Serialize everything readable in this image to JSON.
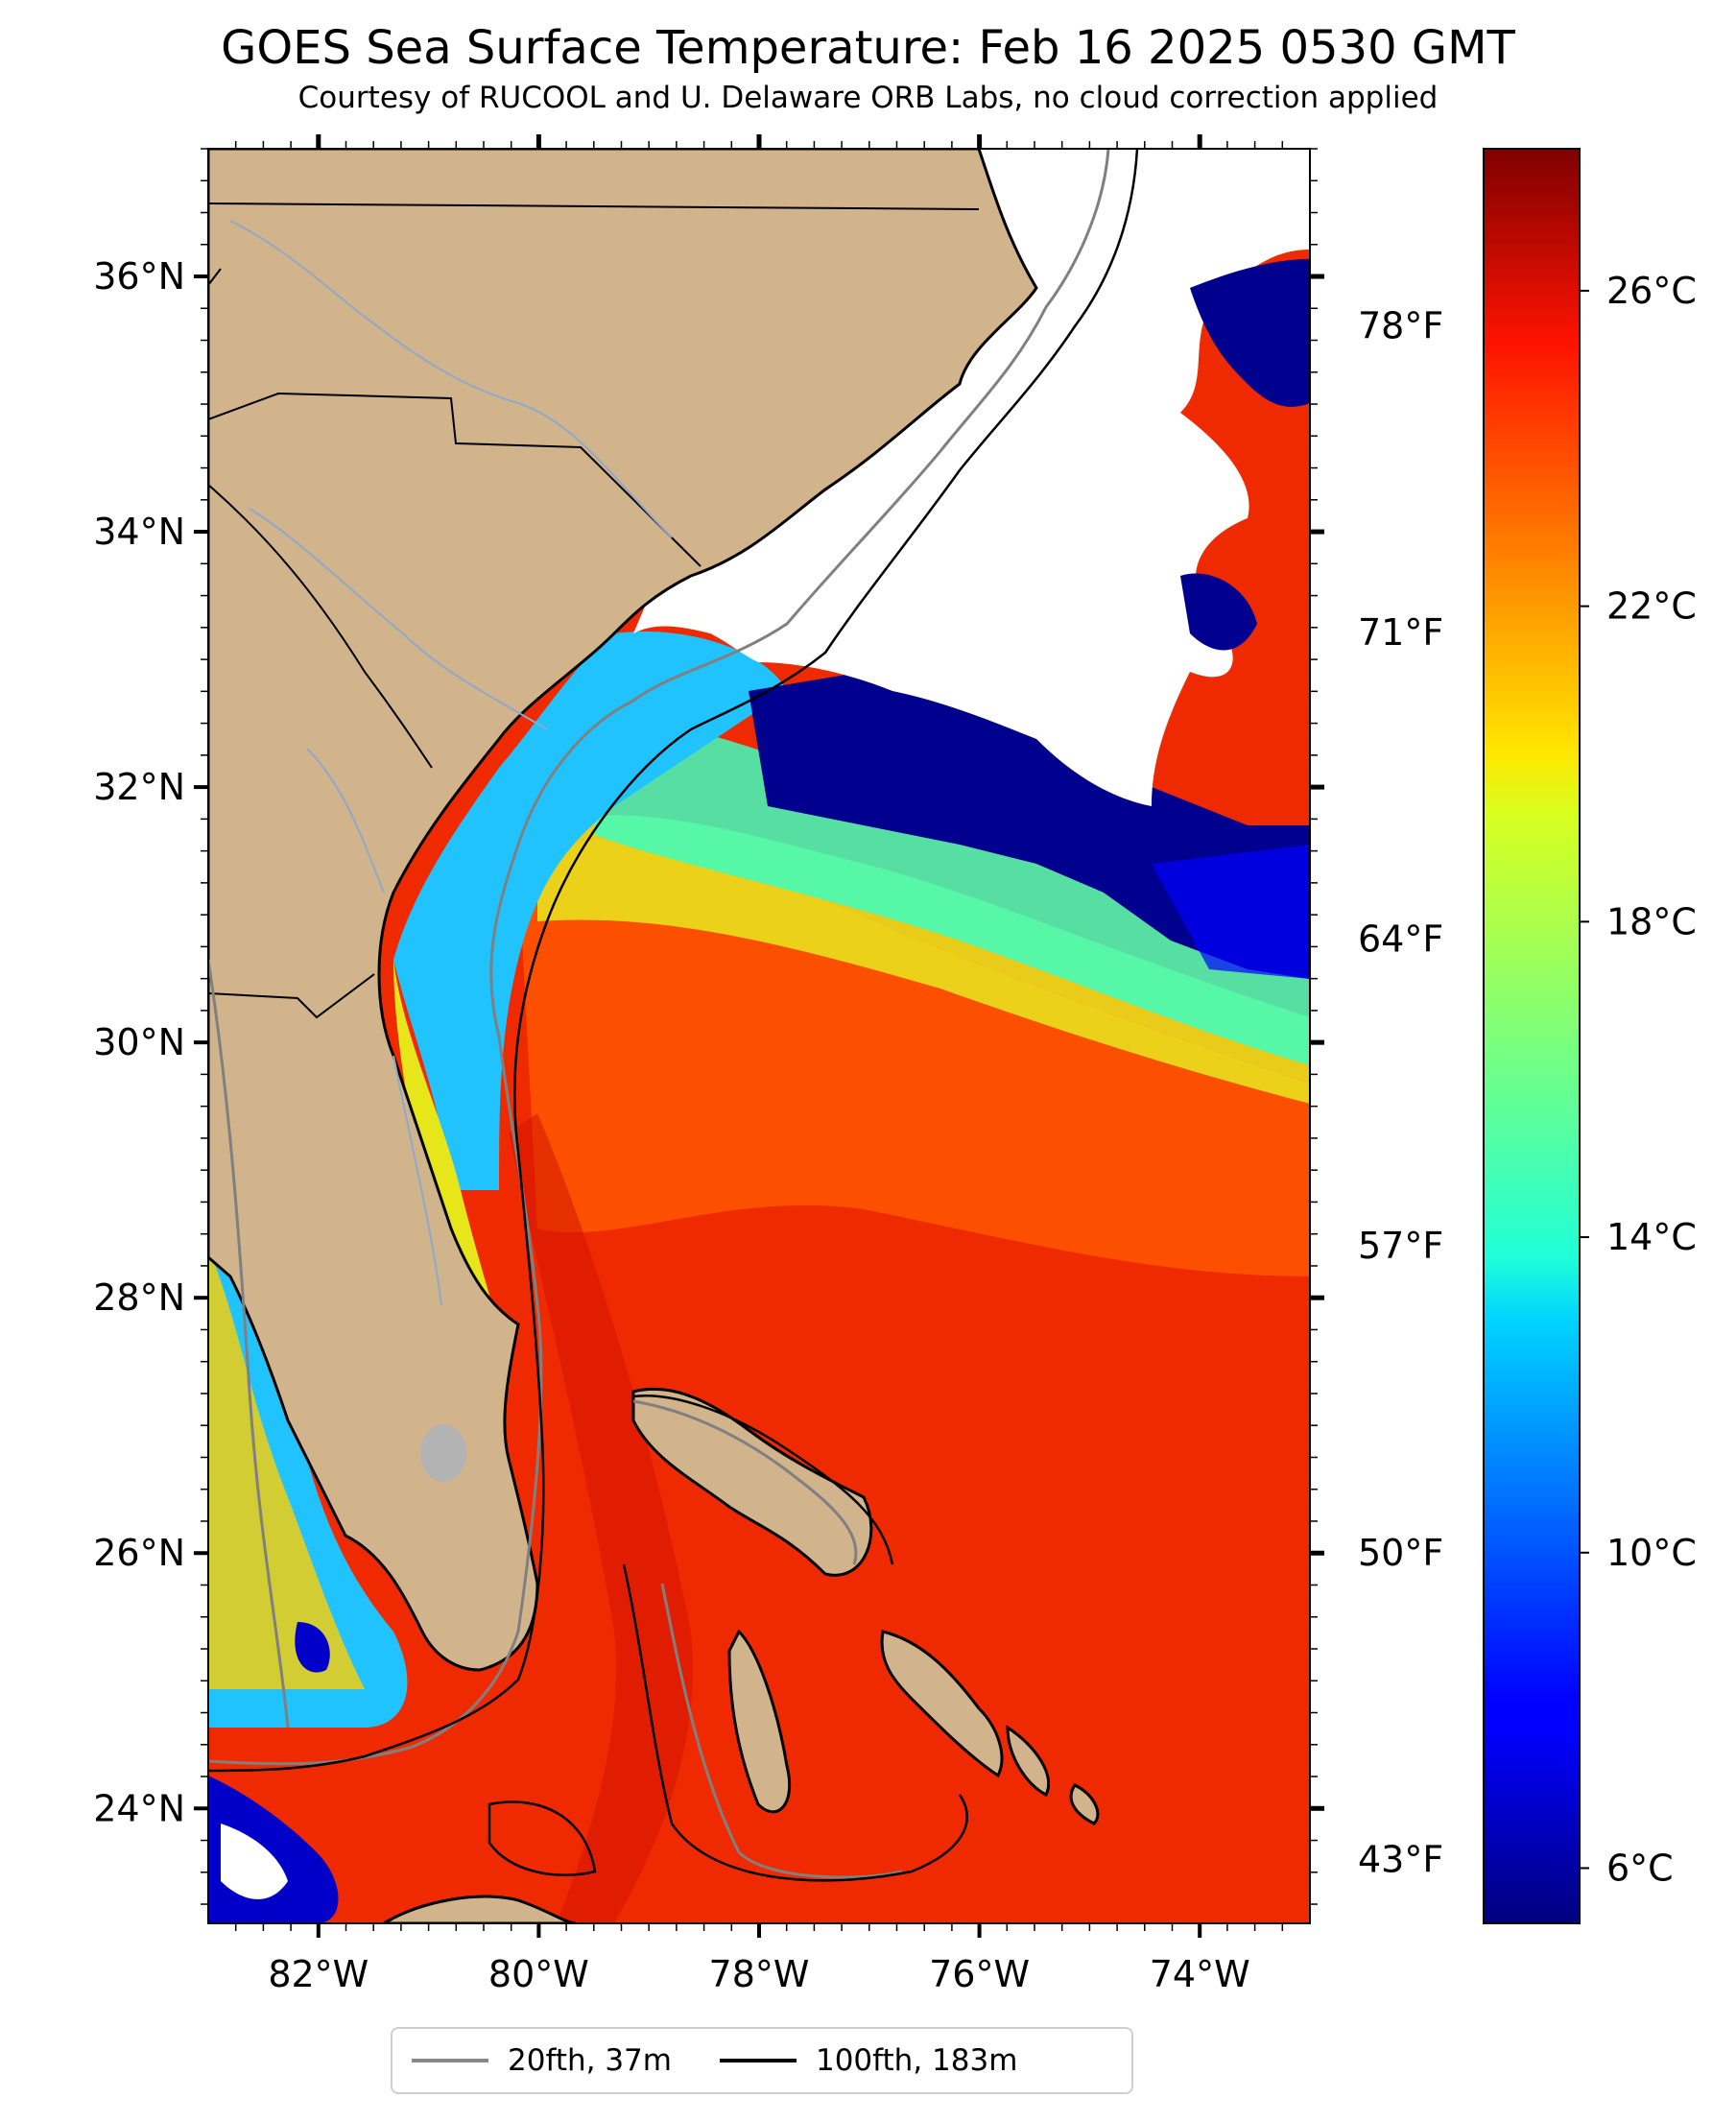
{
  "title": "GOES Sea Surface Temperature: Feb 16 2025 0530 GMT",
  "subtitle": "Courtesy of RUCOOL and U. Delaware ORB Labs, no cloud correction applied",
  "map": {
    "lon_range": [
      -83,
      -73
    ],
    "lat_range": [
      23.1,
      37
    ],
    "lat_ticks": [
      {
        "value": 36,
        "label": "36°N"
      },
      {
        "value": 34,
        "label": "34°N"
      },
      {
        "value": 32,
        "label": "32°N"
      },
      {
        "value": 30,
        "label": "30°N"
      },
      {
        "value": 28,
        "label": "28°N"
      },
      {
        "value": 26,
        "label": "26°N"
      },
      {
        "value": 24,
        "label": "24°N"
      }
    ],
    "lon_ticks": [
      {
        "value": -82,
        "label": "82°W"
      },
      {
        "value": -80,
        "label": "80°W"
      },
      {
        "value": -78,
        "label": "78°W"
      },
      {
        "value": -76,
        "label": "76°W"
      },
      {
        "value": -74,
        "label": "74°W"
      }
    ],
    "colors": {
      "land": "#d2b48c",
      "cloud": "#ffffff",
      "rivers": "#8fa9c8",
      "isobath_20": "#808080",
      "isobath_100": "#000000",
      "lake": "#b3b3b3"
    }
  },
  "colorbar": {
    "colormap": "jet",
    "range_c": [
      5.3,
      27.8
    ],
    "celsius_ticks": [
      {
        "value": 26,
        "label": "26°C"
      },
      {
        "value": 22,
        "label": "22°C"
      },
      {
        "value": 18,
        "label": "18°C"
      },
      {
        "value": 14,
        "label": "14°C"
      },
      {
        "value": 10,
        "label": "10°C"
      },
      {
        "value": 6,
        "label": "6°C"
      }
    ],
    "fahrenheit_ticks": [
      {
        "value": 78,
        "label": "78°F"
      },
      {
        "value": 71,
        "label": "71°F"
      },
      {
        "value": 64,
        "label": "64°F"
      },
      {
        "value": 57,
        "label": "57°F"
      },
      {
        "value": 50,
        "label": "50°F"
      },
      {
        "value": 43,
        "label": "43°F"
      }
    ]
  },
  "legend": {
    "items": [
      {
        "label": "20fth, 37m",
        "color": "#808080"
      },
      {
        "label": "100fth, 183m",
        "color": "#000000"
      }
    ]
  }
}
